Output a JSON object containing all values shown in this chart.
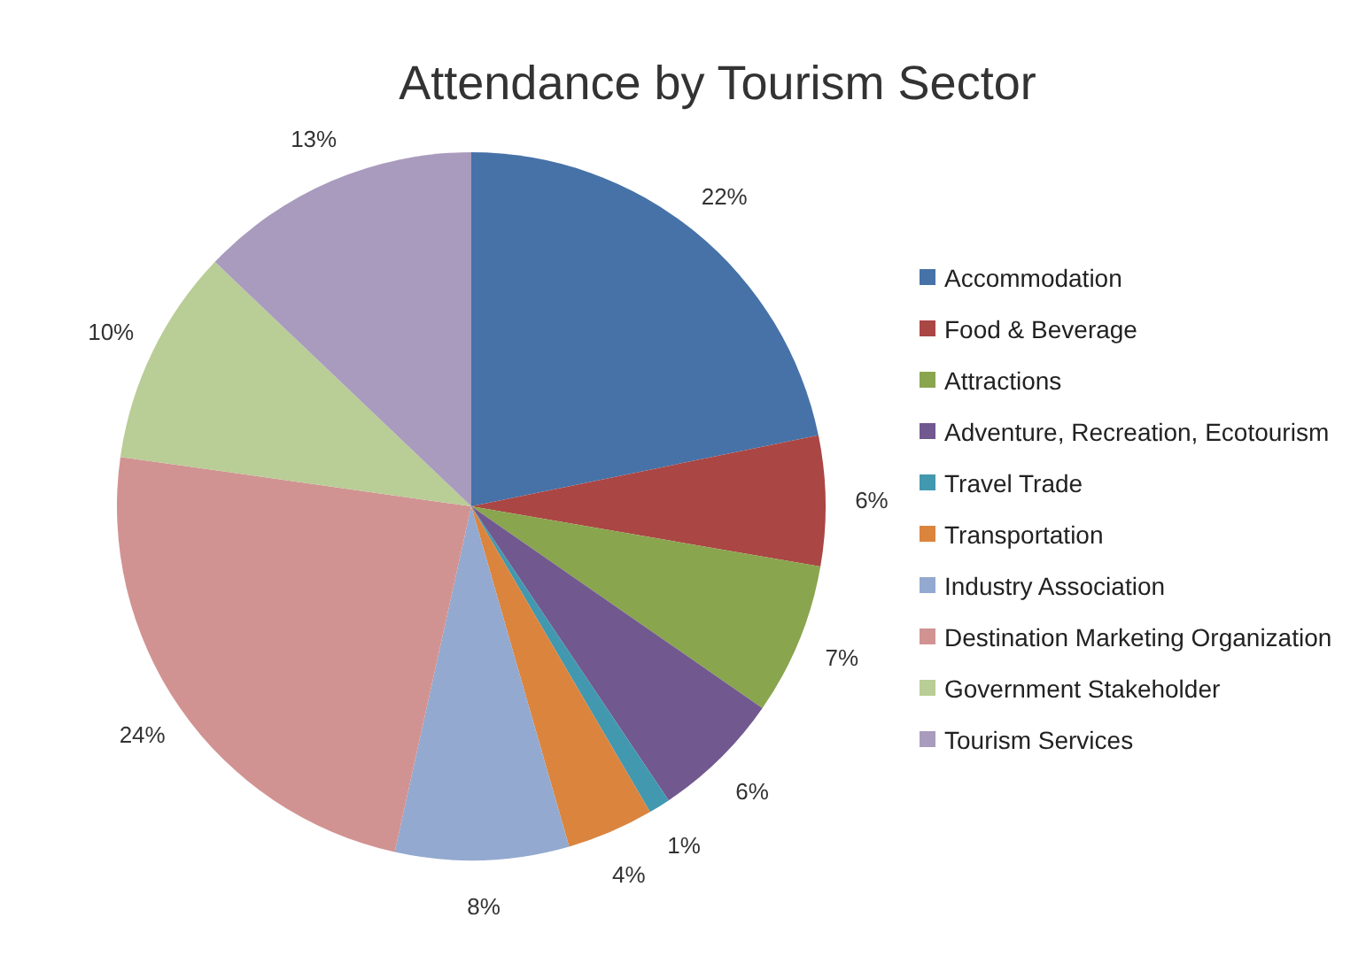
{
  "chart_data": {
    "type": "pie",
    "title": "Attendance by Tourism Sector",
    "categories": [
      "Accommodation",
      "Food & Beverage",
      "Attractions",
      "Adventure, Recreation, Ecotourism",
      "Travel Trade",
      "Transportation",
      "Industry Association",
      "Destination Marketing Organization",
      "Government Stakeholder",
      "Tourism Services"
    ],
    "values": [
      22,
      6,
      7,
      6,
      1,
      4,
      8,
      24,
      10,
      13
    ],
    "value_labels": [
      "22%",
      "6%",
      "7%",
      "6%",
      "1%",
      "4%",
      "8%",
      "24%",
      "10%",
      "13%"
    ],
    "colors": [
      "#4672a8",
      "#aa4644",
      "#89a54e",
      "#71588f",
      "#4298af",
      "#db843d",
      "#93a9cf",
      "#d19392",
      "#b9cd96",
      "#a99bbd"
    ],
    "legend": "right"
  }
}
